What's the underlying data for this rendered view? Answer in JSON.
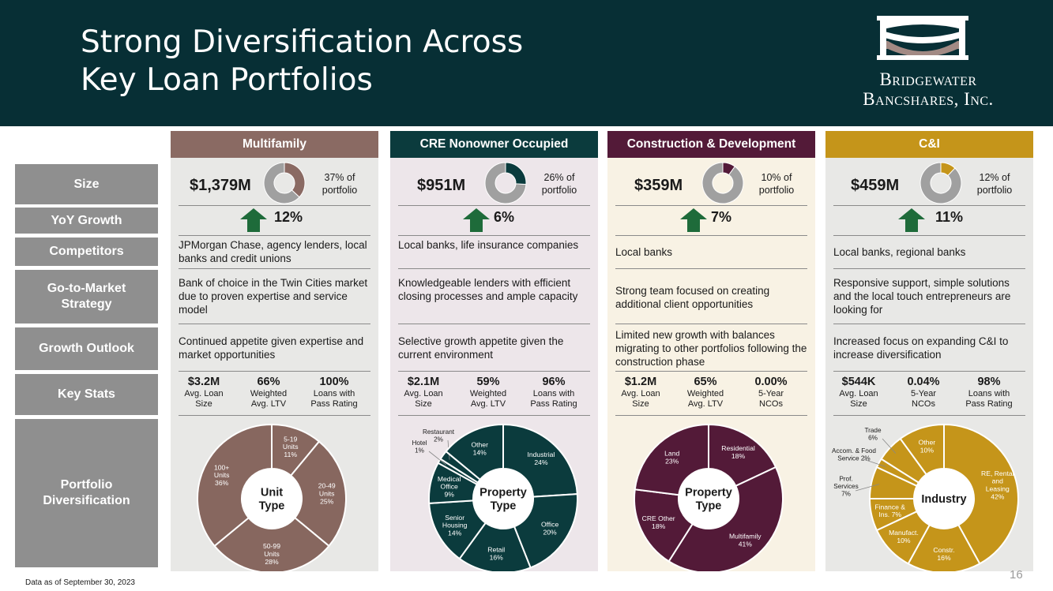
{
  "title": "Strong Diversification Across\nKey Loan Portfolios",
  "logo": {
    "line1": "Bridgewater",
    "line2": "Bancshares, Inc.",
    "icon": "bridge-arch-icon"
  },
  "row_labels": [
    "Size",
    "YoY Growth",
    "Competitors",
    "Go-to-Market\nStrategy",
    "Growth Outlook",
    "Key Stats",
    "Portfolio\nDiversification"
  ],
  "columns": [
    {
      "header": "Multifamily",
      "header_color": "#8a6a63",
      "bg_color": "#e8e8e6",
      "size": "$1,379M",
      "portfolio_pct": "37% of\nportfolio",
      "portfolio_share": 0.37,
      "donut_color": "#8a6a63",
      "growth": "12%",
      "competitors": "JPMorgan Chase, agency lenders, local banks and credit unions",
      "strategy": "Bank of choice in the Twin Cities market due to proven expertise and service model",
      "outlook": "Continued appetite given expertise and market opportunities",
      "stats": [
        {
          "value": "$3.2M",
          "label": "Avg. Loan\nSize"
        },
        {
          "value": "66%",
          "label": "Weighted\nAvg. LTV"
        },
        {
          "value": "100%",
          "label": "Loans with\nPass Rating"
        }
      ],
      "pie_title": "Unit\nType",
      "pie_color": "#87675f",
      "pie_text_color": "#ffffff",
      "pie_center_text_color": "#1a1a1a",
      "pie_stroke": "#ffffff",
      "slices": [
        {
          "label": "5-19\nUnits\n11%",
          "value": 11
        },
        {
          "label": "20-49\nUnits\n25%",
          "value": 25
        },
        {
          "label": "50-99\nUnits\n28%",
          "value": 28
        },
        {
          "label": "100+\nUnits\n36%",
          "value": 36
        }
      ]
    },
    {
      "header": "CRE Nonowner Occupied",
      "header_color": "#0b3b3d",
      "bg_color": "#ede6ea",
      "size": "$951M",
      "portfolio_pct": "26% of\nportfolio",
      "portfolio_share": 0.26,
      "donut_color": "#0b3b3d",
      "growth": "6%",
      "competitors": "Local banks, life insurance companies",
      "strategy": "Knowledgeable lenders with efficient closing processes and ample capacity",
      "outlook": "Selective growth appetite given the current environment",
      "stats": [
        {
          "value": "$2.1M",
          "label": "Avg. Loan\nSize"
        },
        {
          "value": "59%",
          "label": "Weighted\nAvg. LTV"
        },
        {
          "value": "96%",
          "label": "Loans with\nPass Rating"
        }
      ],
      "pie_title": "Property\nType",
      "pie_color": "#0b3b3d",
      "pie_text_color": "#ffffff",
      "pie_center_text_color": "#1a1a1a",
      "pie_stroke": "#ffffff",
      "slices": [
        {
          "label": "Industrial\n24%",
          "value": 24
        },
        {
          "label": "Office\n20%",
          "value": 20
        },
        {
          "label": "Retail\n16%",
          "value": 16
        },
        {
          "label": "Senior\nHousing\n14%",
          "value": 14
        },
        {
          "label": "Medical\nOffice\n9%",
          "value": 9
        },
        {
          "label": "Hotel\n1%",
          "value": 1,
          "outside": true
        },
        {
          "label": "Restaurant\n2%",
          "value": 2,
          "outside": true
        },
        {
          "label": "Other\n14%",
          "value": 14
        }
      ]
    },
    {
      "header": "Construction & Development",
      "header_color": "#531a38",
      "bg_color": "#f8f2e4",
      "size": "$359M",
      "portfolio_pct": "10% of\nportfolio",
      "portfolio_share": 0.1,
      "donut_color": "#531a38",
      "growth": "7%",
      "competitors": "Local banks",
      "strategy": "Strong team focused on creating additional client opportunities",
      "outlook": "Limited new growth with balances migrating to other portfolios following the construction phase",
      "stats": [
        {
          "value": "$1.2M",
          "label": "Avg. Loan\nSize"
        },
        {
          "value": "65%",
          "label": "Weighted\nAvg. LTV"
        },
        {
          "value": "0.00%",
          "label": "5-Year\nNCOs"
        }
      ],
      "pie_title": "Property\nType",
      "pie_color": "#531a38",
      "pie_text_color": "#ffffff",
      "pie_center_text_color": "#1a1a1a",
      "pie_stroke": "#ffffff",
      "slices": [
        {
          "label": "Residential\n18%",
          "value": 18
        },
        {
          "label": "Multifamily\n41%",
          "value": 41
        },
        {
          "label": "CRE Other\n18%",
          "value": 18
        },
        {
          "label": "Land\n23%",
          "value": 23
        }
      ]
    },
    {
      "header": "C&I",
      "header_color": "#c5951a",
      "bg_color": "#e8e8e6",
      "size": "$459M",
      "portfolio_pct": "12% of\nportfolio",
      "portfolio_share": 0.12,
      "donut_color": "#c5951a",
      "growth": "11%",
      "competitors": "Local banks, regional banks",
      "strategy": "Responsive support, simple solutions and the local touch entrepreneurs are looking for",
      "outlook": "Increased focus on expanding C&I to increase diversification",
      "stats": [
        {
          "value": "$544K",
          "label": "Avg. Loan\nSize"
        },
        {
          "value": "0.04%",
          "label": "5-Year\nNCOs"
        },
        {
          "value": "98%",
          "label": "Loans with\nPass Rating"
        }
      ],
      "pie_title": "Industry",
      "pie_color": "#c5951a",
      "pie_text_color": "#ffffff",
      "pie_center_text_color": "#1a1a1a",
      "pie_stroke": "#ffffff",
      "slices": [
        {
          "label": "RE, Rental\nand\nLeasing\n42%",
          "value": 42
        },
        {
          "label": "Constr.\n16%",
          "value": 16
        },
        {
          "label": "Manufact.\n10%",
          "value": 10
        },
        {
          "label": "Finance &\nIns. 7%",
          "value": 7
        },
        {
          "label": "Prof.\nServices\n7%",
          "value": 7,
          "outside": true
        },
        {
          "label": "Accom. & Food\nService 2%",
          "value": 2,
          "outside": true
        },
        {
          "label": "Trade\n6%",
          "value": 6,
          "outside": true
        },
        {
          "label": "Other\n10%",
          "value": 10
        }
      ]
    }
  ],
  "footnote": "Data as of September 30, 2023",
  "page_number": "16",
  "colors": {
    "header_bg": "#072f35",
    "row_label_bg": "#8f8f8f",
    "growth_arrow": "#1e6b3a",
    "donut_rest": "#a0a0a0"
  }
}
